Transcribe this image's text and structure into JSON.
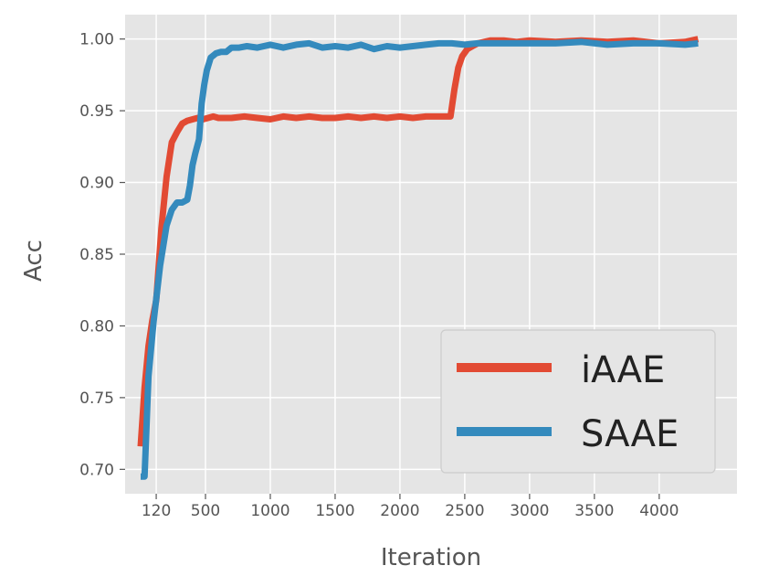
{
  "chart_data": {
    "type": "line",
    "title": "",
    "xlabel": "Iteration",
    "ylabel": "Acc",
    "xlim": [
      -120,
      4600
    ],
    "ylim": [
      0.683,
      1.017
    ],
    "xticks": [
      120,
      500,
      1000,
      1500,
      2000,
      2500,
      3000,
      3500,
      4000
    ],
    "yticks": [
      0.7,
      0.75,
      0.8,
      0.85,
      0.9,
      0.95,
      1.0
    ],
    "grid": true,
    "legend_position": "lower-right",
    "series": [
      {
        "name": "iAAE",
        "color": "#E24A33",
        "x": [
          0,
          30,
          60,
          90,
          120,
          160,
          200,
          240,
          280,
          320,
          360,
          400,
          440,
          480,
          520,
          560,
          600,
          700,
          800,
          900,
          1000,
          1100,
          1200,
          1300,
          1400,
          1500,
          1600,
          1700,
          1800,
          1900,
          2000,
          2100,
          2200,
          2300,
          2360,
          2390,
          2420,
          2450,
          2480,
          2520,
          2560,
          2600,
          2650,
          2700,
          2800,
          2900,
          3000,
          3200,
          3400,
          3600,
          3800,
          4000,
          4200,
          4300
        ],
        "y": [
          0.716,
          0.757,
          0.786,
          0.804,
          0.818,
          0.868,
          0.904,
          0.928,
          0.935,
          0.941,
          0.943,
          0.944,
          0.945,
          0.944,
          0.945,
          0.946,
          0.945,
          0.945,
          0.946,
          0.945,
          0.944,
          0.946,
          0.945,
          0.946,
          0.945,
          0.945,
          0.946,
          0.945,
          0.946,
          0.945,
          0.946,
          0.945,
          0.946,
          0.946,
          0.946,
          0.946,
          0.965,
          0.98,
          0.988,
          0.993,
          0.995,
          0.997,
          0.998,
          0.999,
          0.999,
          0.998,
          0.999,
          0.998,
          0.999,
          0.998,
          0.999,
          0.997,
          0.998,
          1.0
        ]
      },
      {
        "name": "SAAE",
        "color": "#348ABD",
        "x": [
          0,
          30,
          60,
          100,
          150,
          200,
          240,
          280,
          320,
          360,
          380,
          400,
          420,
          450,
          470,
          490,
          510,
          540,
          580,
          620,
          660,
          700,
          760,
          820,
          900,
          1000,
          1100,
          1200,
          1300,
          1400,
          1500,
          1600,
          1700,
          1800,
          1900,
          2000,
          2100,
          2200,
          2300,
          2400,
          2500,
          2600,
          2800,
          3000,
          3200,
          3400,
          3600,
          3800,
          4000,
          4200,
          4300
        ],
        "y": [
          0.695,
          0.695,
          0.765,
          0.803,
          0.842,
          0.87,
          0.881,
          0.886,
          0.886,
          0.888,
          0.898,
          0.912,
          0.92,
          0.93,
          0.955,
          0.968,
          0.978,
          0.987,
          0.99,
          0.991,
          0.991,
          0.994,
          0.994,
          0.995,
          0.994,
          0.996,
          0.994,
          0.996,
          0.997,
          0.994,
          0.995,
          0.994,
          0.996,
          0.993,
          0.995,
          0.994,
          0.995,
          0.996,
          0.997,
          0.997,
          0.996,
          0.997,
          0.997,
          0.997,
          0.997,
          0.998,
          0.996,
          0.997,
          0.997,
          0.996,
          0.997
        ]
      }
    ]
  }
}
